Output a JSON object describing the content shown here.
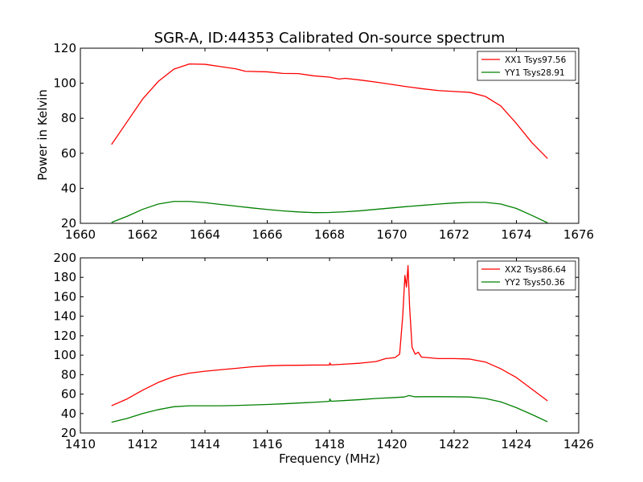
{
  "chart_data": [
    {
      "type": "line",
      "title": "SGR-A, ID:44353 Calibrated On-source spectrum",
      "xlabel": "",
      "ylabel": "Power in Kelvin",
      "xlim": [
        1660,
        1676
      ],
      "ylim": [
        20,
        120
      ],
      "xticks": [
        "1660",
        "1662",
        "1664",
        "1666",
        "1668",
        "1670",
        "1672",
        "1674",
        "1676"
      ],
      "yticks": [
        "20",
        "40",
        "60",
        "80",
        "100",
        "120"
      ],
      "legend_position": "top-right",
      "series": [
        {
          "name": "XX1 Tsys97.56",
          "color": "#ff0000",
          "points": [
            [
              1661.0,
              65
            ],
            [
              1661.5,
              78
            ],
            [
              1662.0,
              91
            ],
            [
              1662.5,
              101
            ],
            [
              1663.0,
              108
            ],
            [
              1663.5,
              111
            ],
            [
              1664.0,
              110.8
            ],
            [
              1664.5,
              109.5
            ],
            [
              1665.0,
              108.2
            ],
            [
              1665.3,
              106.8
            ],
            [
              1666.0,
              106.5
            ],
            [
              1666.5,
              105.6
            ],
            [
              1667.0,
              105.5
            ],
            [
              1667.5,
              104.2
            ],
            [
              1668.0,
              103.5
            ],
            [
              1668.3,
              102.4
            ],
            [
              1668.5,
              102.8
            ],
            [
              1669.0,
              101.8
            ],
            [
              1669.5,
              100.6
            ],
            [
              1670.0,
              99.3
            ],
            [
              1670.5,
              98
            ],
            [
              1671.0,
              96.8
            ],
            [
              1671.5,
              95.8
            ],
            [
              1672.0,
              95.3
            ],
            [
              1672.5,
              94.8
            ],
            [
              1673.0,
              92.5
            ],
            [
              1673.5,
              87
            ],
            [
              1674.0,
              77
            ],
            [
              1674.5,
              66
            ],
            [
              1675.0,
              57
            ]
          ]
        },
        {
          "name": "YY1 Tsys28.91",
          "color": "#008000",
          "points": [
            [
              1661.0,
              20.5
            ],
            [
              1661.5,
              24
            ],
            [
              1662.0,
              28
            ],
            [
              1662.5,
              31
            ],
            [
              1663.0,
              32.5
            ],
            [
              1663.5,
              32.5
            ],
            [
              1664.0,
              31.8
            ],
            [
              1664.5,
              30.8
            ],
            [
              1665.0,
              29.8
            ],
            [
              1665.5,
              28.8
            ],
            [
              1666.0,
              27.9
            ],
            [
              1666.5,
              27.1
            ],
            [
              1667.0,
              26.5
            ],
            [
              1667.5,
              26.1
            ],
            [
              1668.0,
              26.2
            ],
            [
              1668.5,
              26.6
            ],
            [
              1669.0,
              27.2
            ],
            [
              1669.5,
              28
            ],
            [
              1670.0,
              28.8
            ],
            [
              1670.5,
              29.6
            ],
            [
              1671.0,
              30.3
            ],
            [
              1671.5,
              31
            ],
            [
              1672.0,
              31.6
            ],
            [
              1672.5,
              32
            ],
            [
              1673.0,
              32
            ],
            [
              1673.5,
              31
            ],
            [
              1674.0,
              28.5
            ],
            [
              1674.5,
              24.5
            ],
            [
              1675.0,
              20.3
            ]
          ]
        }
      ]
    },
    {
      "type": "line",
      "title": "",
      "xlabel": "Frequency (MHz)",
      "ylabel": "",
      "xlim": [
        1410,
        1426
      ],
      "ylim": [
        20,
        200
      ],
      "xticks": [
        "1410",
        "1412",
        "1414",
        "1416",
        "1418",
        "1420",
        "1422",
        "1424",
        "1426"
      ],
      "yticks": [
        "20",
        "40",
        "60",
        "80",
        "100",
        "120",
        "140",
        "160",
        "180",
        "200"
      ],
      "legend_position": "top-right",
      "series": [
        {
          "name": "XX2 Tsys86.64",
          "color": "#ff0000",
          "points": [
            [
              1411.0,
              48
            ],
            [
              1411.5,
              55
            ],
            [
              1412.0,
              64
            ],
            [
              1412.5,
              72
            ],
            [
              1413.0,
              78
            ],
            [
              1413.5,
              81.5
            ],
            [
              1414.0,
              83.5
            ],
            [
              1414.5,
              85
            ],
            [
              1415.0,
              86.5
            ],
            [
              1415.5,
              88
            ],
            [
              1416.0,
              89
            ],
            [
              1416.5,
              89.5
            ],
            [
              1417.0,
              89.6
            ],
            [
              1417.5,
              89.8
            ],
            [
              1418.0,
              89.9
            ],
            [
              1418.01,
              92
            ],
            [
              1418.05,
              90
            ],
            [
              1418.5,
              90.8
            ],
            [
              1419.0,
              91.8
            ],
            [
              1419.5,
              93.5
            ],
            [
              1419.8,
              96.5
            ],
            [
              1420.1,
              97.5
            ],
            [
              1420.25,
              101
            ],
            [
              1420.35,
              140
            ],
            [
              1420.42,
              182
            ],
            [
              1420.47,
              170
            ],
            [
              1420.52,
              192
            ],
            [
              1420.57,
              150
            ],
            [
              1420.65,
              108
            ],
            [
              1420.75,
              101
            ],
            [
              1420.85,
              103
            ],
            [
              1420.95,
              98
            ],
            [
              1421.5,
              96.5
            ],
            [
              1422.0,
              96.5
            ],
            [
              1422.5,
              96
            ],
            [
              1423.0,
              93
            ],
            [
              1423.5,
              86
            ],
            [
              1424.0,
              77
            ],
            [
              1424.5,
              65
            ],
            [
              1425.0,
              53
            ]
          ]
        },
        {
          "name": "YY2 Tsys50.36",
          "color": "#008000",
          "points": [
            [
              1411.0,
              31
            ],
            [
              1411.5,
              35
            ],
            [
              1412.0,
              40
            ],
            [
              1412.5,
              44
            ],
            [
              1413.0,
              47
            ],
            [
              1413.5,
              48
            ],
            [
              1414.0,
              48
            ],
            [
              1414.5,
              48
            ],
            [
              1415.0,
              48.3
            ],
            [
              1415.5,
              48.8
            ],
            [
              1416.0,
              49.3
            ],
            [
              1416.5,
              50
            ],
            [
              1417.0,
              50.8
            ],
            [
              1417.5,
              51.6
            ],
            [
              1418.0,
              52.5
            ],
            [
              1418.01,
              55
            ],
            [
              1418.05,
              52.6
            ],
            [
              1418.5,
              53.4
            ],
            [
              1419.0,
              54.3
            ],
            [
              1419.5,
              55.5
            ],
            [
              1420.0,
              56.3
            ],
            [
              1420.4,
              57
            ],
            [
              1420.55,
              58.5
            ],
            [
              1420.75,
              57.2
            ],
            [
              1421.0,
              57.3
            ],
            [
              1421.5,
              57.3
            ],
            [
              1422.0,
              57.2
            ],
            [
              1422.5,
              57
            ],
            [
              1423.0,
              55.5
            ],
            [
              1423.5,
              52
            ],
            [
              1424.0,
              46
            ],
            [
              1424.5,
              39
            ],
            [
              1425.0,
              31.5
            ]
          ]
        }
      ]
    }
  ]
}
